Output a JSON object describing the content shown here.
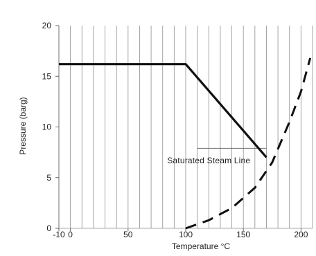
{
  "chart_data": {
    "type": "line",
    "xlabel": "Temperature °C",
    "ylabel": "Pressure (barg)",
    "xlim": [
      -10,
      210
    ],
    "ylim": [
      0,
      20
    ],
    "x_ticks": [
      -10,
      0,
      50,
      100,
      150,
      200
    ],
    "x_tick_labels": [
      "-10",
      "0",
      "50",
      "100",
      "150",
      "200"
    ],
    "y_ticks": [
      0,
      5,
      10,
      15,
      20
    ],
    "y_tick_labels": [
      "0",
      "5",
      "10",
      "15",
      "20"
    ],
    "grid": "vertical",
    "vertical_grid_spacing": 10,
    "series": [
      {
        "style": "solid",
        "color": "#111111",
        "x": [
          -10,
          100,
          170
        ],
        "y": [
          16.2,
          16.2,
          7
        ]
      },
      {
        "style": "dashed",
        "color": "#111111",
        "x": [
          100,
          120,
          140,
          160,
          175,
          190,
          200,
          208
        ],
        "y": [
          0,
          0.8,
          2,
          4,
          6.5,
          10.5,
          13.5,
          16.8
        ]
      }
    ],
    "annotations": [
      {
        "text": "Saturated Steam Line",
        "x": 120,
        "y": 6.4
      }
    ],
    "reference_line": {
      "x": [
        110,
        170
      ],
      "y": [
        7.9,
        7.9
      ]
    }
  }
}
